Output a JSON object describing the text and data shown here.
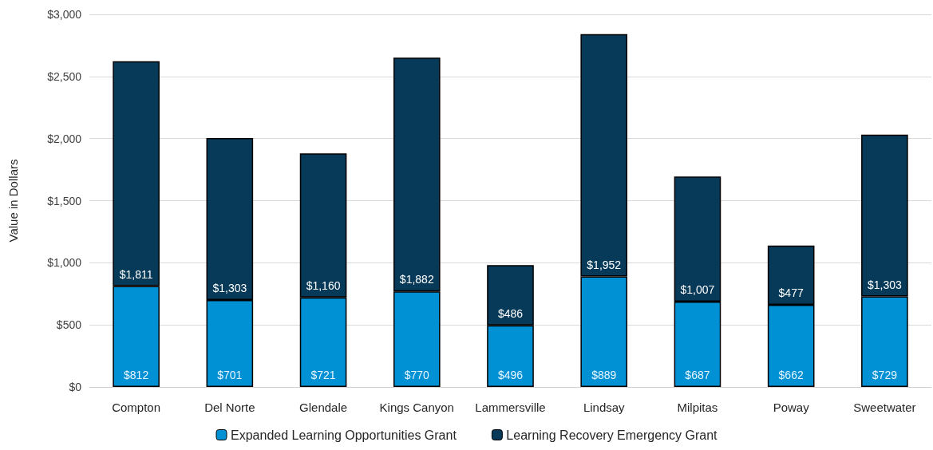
{
  "chart_data": {
    "type": "bar",
    "stacked": true,
    "ylabel": "Value in Dollars",
    "categories": [
      "Compton",
      "Del Norte",
      "Glendale",
      "Kings Canyon",
      "Lammersville",
      "Lindsay",
      "Milpitas",
      "Poway",
      "Sweetwater"
    ],
    "series": [
      {
        "name": "Expanded Learning Opportunities Grant",
        "color": "#0091d5",
        "values": [
          812,
          701,
          721,
          770,
          496,
          889,
          687,
          662,
          729
        ],
        "value_labels": [
          "$812",
          "$701",
          "$721",
          "$770",
          "$496",
          "$889",
          "$687",
          "$662",
          "$729"
        ]
      },
      {
        "name": "Learning Recovery Emergency Grant",
        "color": "#073a59",
        "values": [
          1811,
          1303,
          1160,
          1882,
          486,
          1952,
          1007,
          477,
          1303
        ],
        "value_labels": [
          "$1,811",
          "$1,303",
          "$1,160",
          "$1,882",
          "$486",
          "$1,952",
          "$1,007",
          "$477",
          "$1,303"
        ]
      }
    ],
    "ylim": [
      0,
      3000
    ],
    "yticks": [
      {
        "value": 0,
        "label": "$0"
      },
      {
        "value": 500,
        "label": "$500"
      },
      {
        "value": 1000,
        "label": "$1,000"
      },
      {
        "value": 1500,
        "label": "$1,500"
      },
      {
        "value": 2000,
        "label": "$2,000"
      },
      {
        "value": 2500,
        "label": "$2,500"
      },
      {
        "value": 3000,
        "label": "$3,000"
      }
    ],
    "grid": "y",
    "legend": "bottom"
  }
}
